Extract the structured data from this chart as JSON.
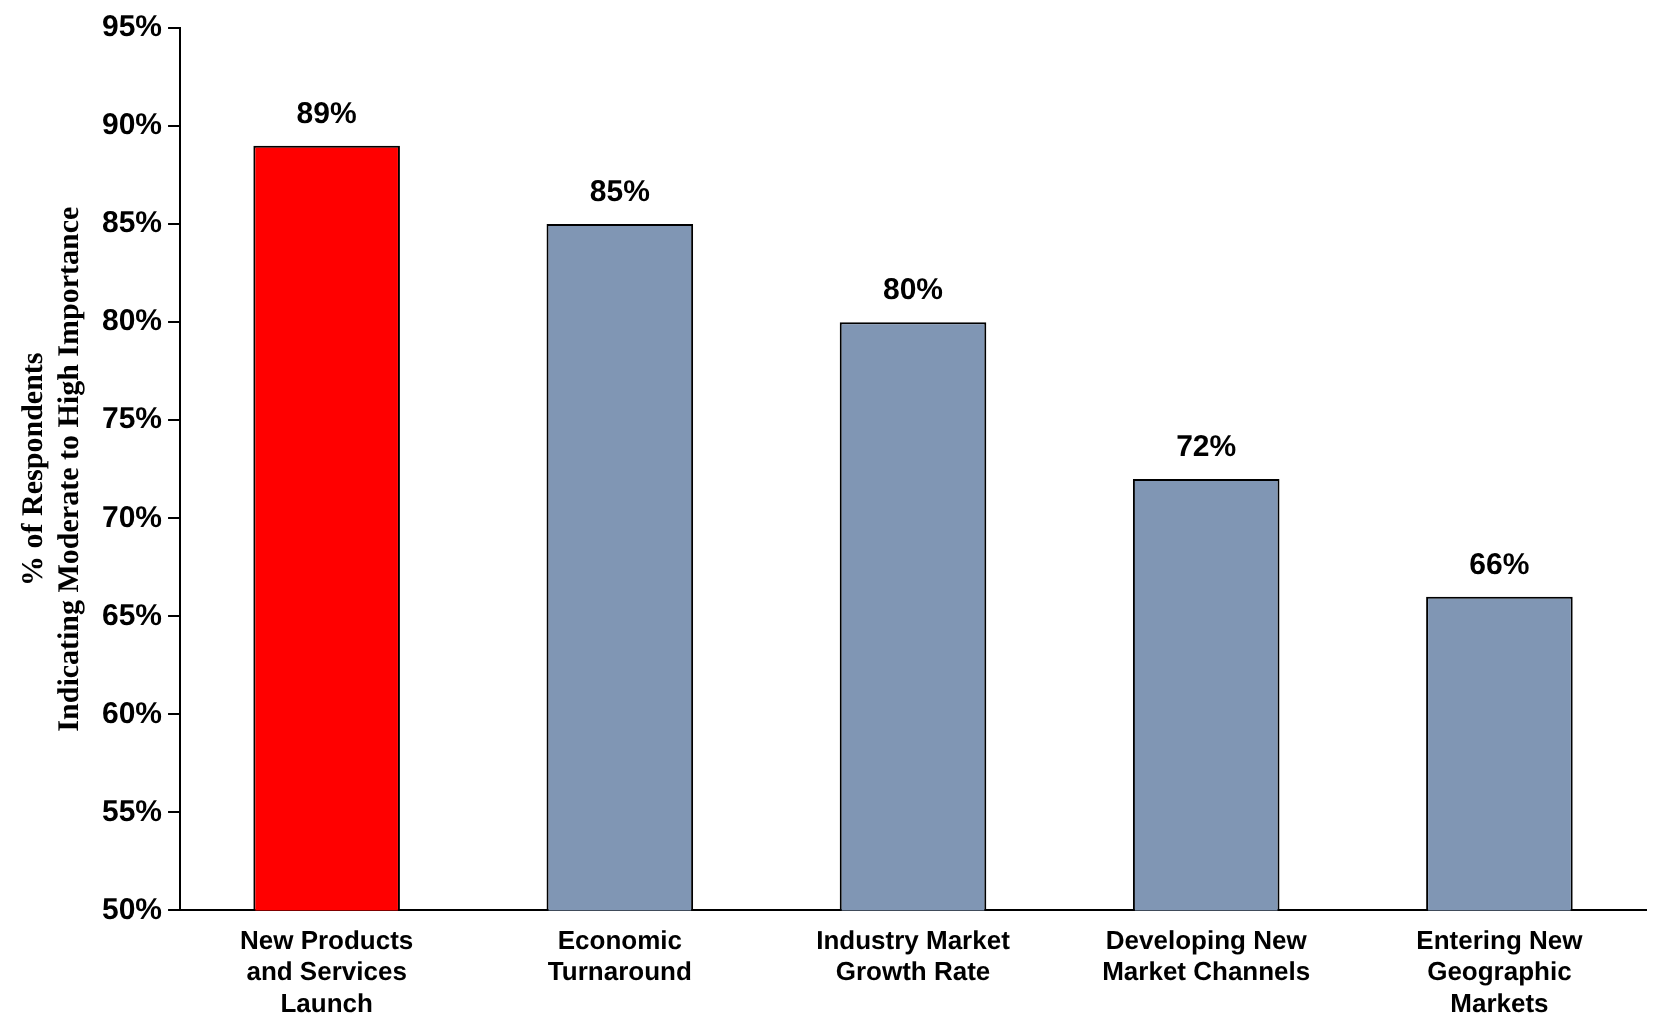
{
  "chart_data": {
    "type": "bar",
    "ylabel": "% of Respondents\nIndicating Moderate to High Importance",
    "categories": [
      "New Products and Services Launch",
      "Economic Turnaround",
      "Industry Market Growth Rate",
      "Developing New Market Channels",
      "Entering New Geographic Markets"
    ],
    "values": [
      89,
      85,
      80,
      72,
      66
    ],
    "colors": [
      "#ff0000",
      "#8096b4",
      "#8096b4",
      "#8096b4",
      "#8096b4"
    ],
    "value_labels": [
      "89%",
      "85%",
      "80%",
      "72%",
      "66%"
    ],
    "ylim": [
      50,
      95
    ],
    "yticks": [
      {
        "value": 50,
        "label": "50%"
      },
      {
        "value": 55,
        "label": "55%"
      },
      {
        "value": 60,
        "label": "60%"
      },
      {
        "value": 65,
        "label": "65%"
      },
      {
        "value": 70,
        "label": "70%"
      },
      {
        "value": 75,
        "label": "75%"
      },
      {
        "value": 80,
        "label": "80%"
      },
      {
        "value": 85,
        "label": "85%"
      },
      {
        "value": 90,
        "label": "90%"
      },
      {
        "value": 95,
        "label": "95%"
      }
    ],
    "grid": false,
    "legend": false
  }
}
